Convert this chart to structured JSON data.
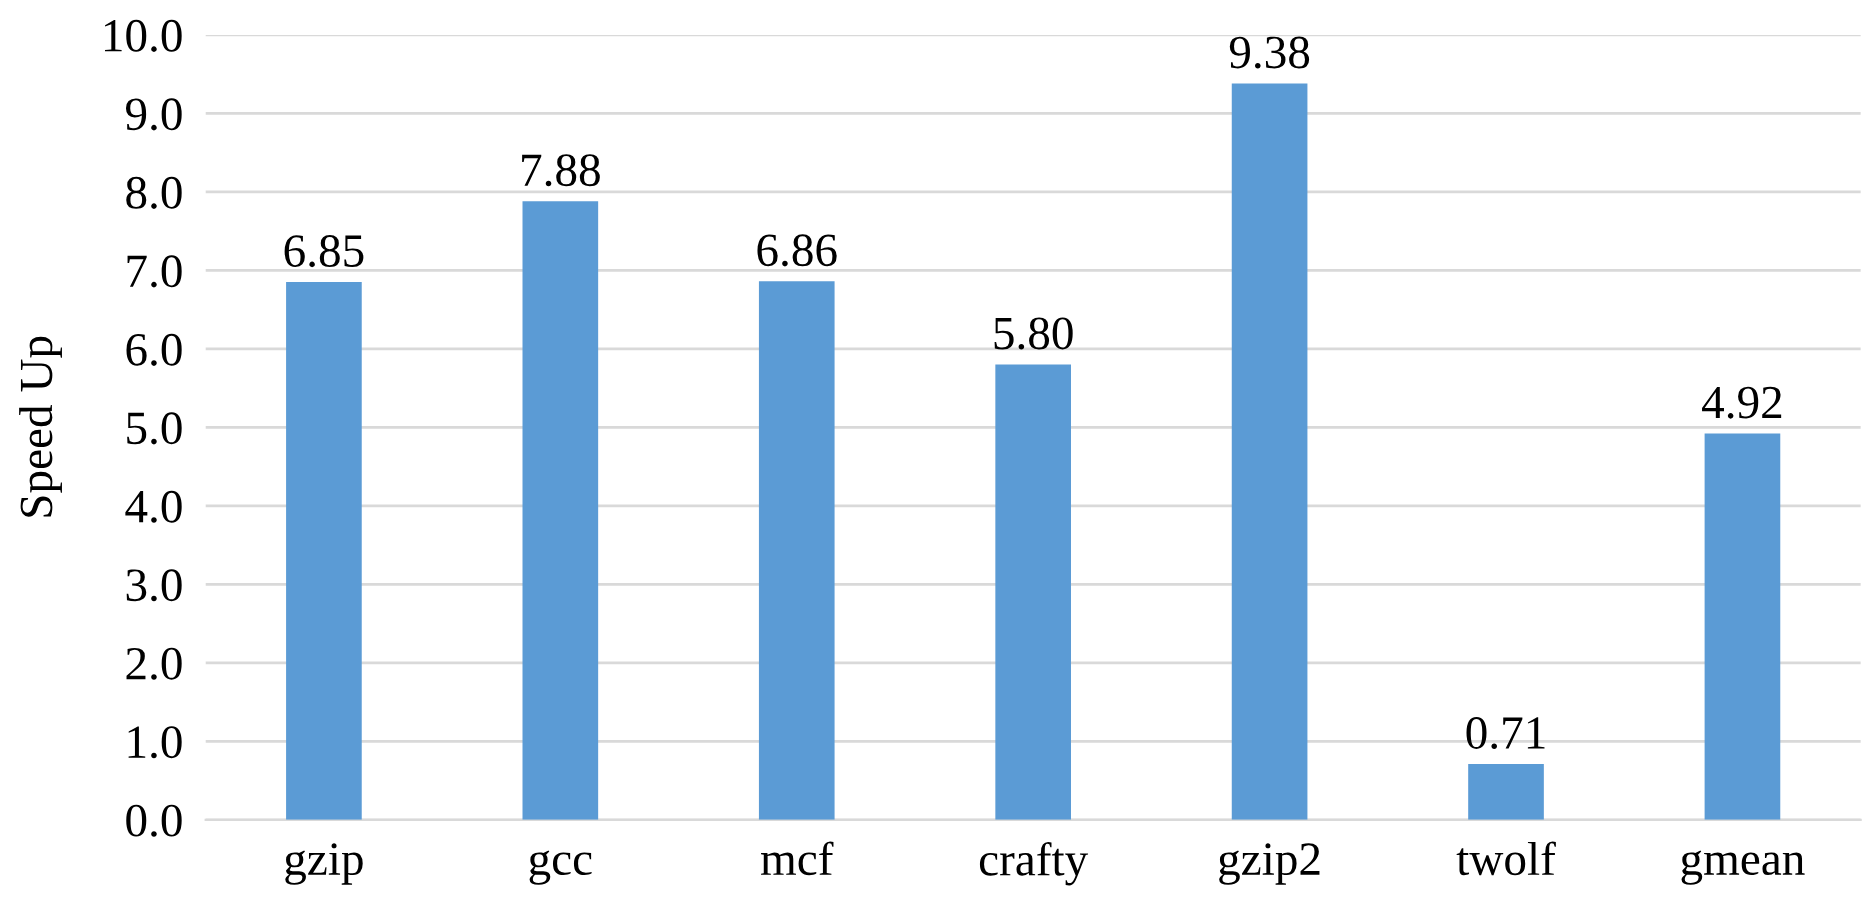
{
  "chart_data": {
    "type": "bar",
    "ylabel": "Speed Up",
    "categories": [
      "gzip",
      "gcc",
      "mcf",
      "crafty",
      "gzip2",
      "twolf",
      "gmean"
    ],
    "values": [
      6.85,
      7.88,
      6.86,
      5.8,
      9.38,
      0.71,
      4.92
    ],
    "value_labels": [
      "6.85",
      "7.88",
      "6.86",
      "5.80",
      "9.38",
      "0.71",
      "4.92"
    ],
    "color": "#5b9bd5",
    "ylim": [
      0,
      10
    ],
    "yticks": [
      {
        "value": 0,
        "label": "0.0"
      },
      {
        "value": 1,
        "label": "1.0"
      },
      {
        "value": 2,
        "label": "2.0"
      },
      {
        "value": 3,
        "label": "3.0"
      },
      {
        "value": 4,
        "label": "4.0"
      },
      {
        "value": 5,
        "label": "5.0"
      },
      {
        "value": 6,
        "label": "6.0"
      },
      {
        "value": 7,
        "label": "7.0"
      },
      {
        "value": 8,
        "label": "8.0"
      },
      {
        "value": 9,
        "label": "9.0"
      },
      {
        "value": 10,
        "label": "10.0"
      }
    ],
    "grid": "y"
  }
}
